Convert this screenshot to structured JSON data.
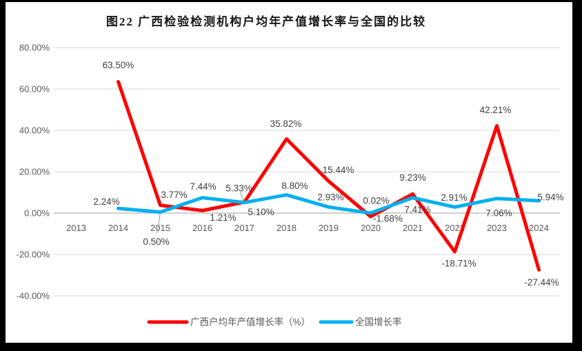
{
  "title": "图22 广西检验检测机构户均年产值增长率与全国的比较",
  "chart_data": {
    "type": "line",
    "title": "图22 广西检验检测机构户均年产值增长率与全国的比较",
    "categories": [
      "2013",
      "2014",
      "2015",
      "2016",
      "2017",
      "2018",
      "2019",
      "2020",
      "2021",
      "2022",
      "2023",
      "2024"
    ],
    "series": [
      {
        "name": "广西户均年产值增长率（%）",
        "color": "#FF0000",
        "values": [
          null,
          63.5,
          3.77,
          1.21,
          5.33,
          35.82,
          15.44,
          -1.68,
          9.23,
          -18.71,
          42.21,
          -27.44
        ],
        "labels": [
          null,
          "63.50%",
          "3.77%",
          "1.21%",
          "5.33%",
          "35.82%",
          "15.44%",
          "-1.68%",
          "9.23%",
          "-18.71%",
          "42.21%",
          "-27.44%"
        ],
        "label_offsets": [
          null,
          [
            0,
            -24
          ],
          [
            20,
            -15
          ],
          [
            30,
            10
          ],
          [
            -8,
            -20
          ],
          [
            -1,
            -22
          ],
          [
            14,
            -16
          ],
          [
            25,
            3
          ],
          [
            0,
            -24
          ],
          [
            6,
            17
          ],
          [
            -2,
            -23
          ],
          [
            4,
            18
          ]
        ]
      },
      {
        "name": "全国增长率",
        "color": "#00B0F0",
        "values": [
          null,
          2.24,
          0.5,
          7.44,
          5.1,
          8.8,
          2.93,
          0.02,
          7.41,
          2.91,
          7.06,
          5.94
        ],
        "labels": [
          null,
          "2.24%",
          "0.50%",
          "7.44%",
          "5.10%",
          "8.80%",
          "2.93%",
          "0.02%",
          "7.41%",
          "2.91%",
          "7.06%",
          "5.94%"
        ],
        "label_offsets": [
          null,
          [
            -17,
            -10
          ],
          [
            -6,
            43
          ],
          [
            1,
            -16
          ],
          [
            24,
            14
          ],
          [
            12,
            -13
          ],
          [
            3,
            -14
          ],
          [
            8,
            -18
          ],
          [
            7,
            17
          ],
          [
            -1,
            -14
          ],
          [
            3,
            21
          ],
          [
            17,
            -5
          ]
        ]
      }
    ],
    "y_ticks": [
      {
        "value": 80,
        "label": "80.00%"
      },
      {
        "value": 60,
        "label": "60.00%"
      },
      {
        "value": 40,
        "label": "40.00%"
      },
      {
        "value": 20,
        "label": "20.00%"
      },
      {
        "value": 0,
        "label": "0.00%"
      },
      {
        "value": -20,
        "label": "-20.00%"
      },
      {
        "value": -40,
        "label": "-40.00%"
      }
    ],
    "ylim": [
      -40,
      80
    ],
    "xlabel": "",
    "ylabel": "",
    "grid": true,
    "legend_position": "bottom",
    "leader_lines": [
      {
        "series": 0,
        "index": 4
      },
      {
        "series": 1,
        "index": 2
      }
    ],
    "colors": {
      "grid": "#D9D9D9",
      "axis": "#BFBFBF",
      "leader": "#A6A6A6",
      "tick_text": "#595959",
      "data_label_text": "#404040",
      "legend_text": "#595959",
      "title_text": "#171717",
      "chart_background": "#FFFFFF",
      "frame_background": "#000000"
    }
  }
}
